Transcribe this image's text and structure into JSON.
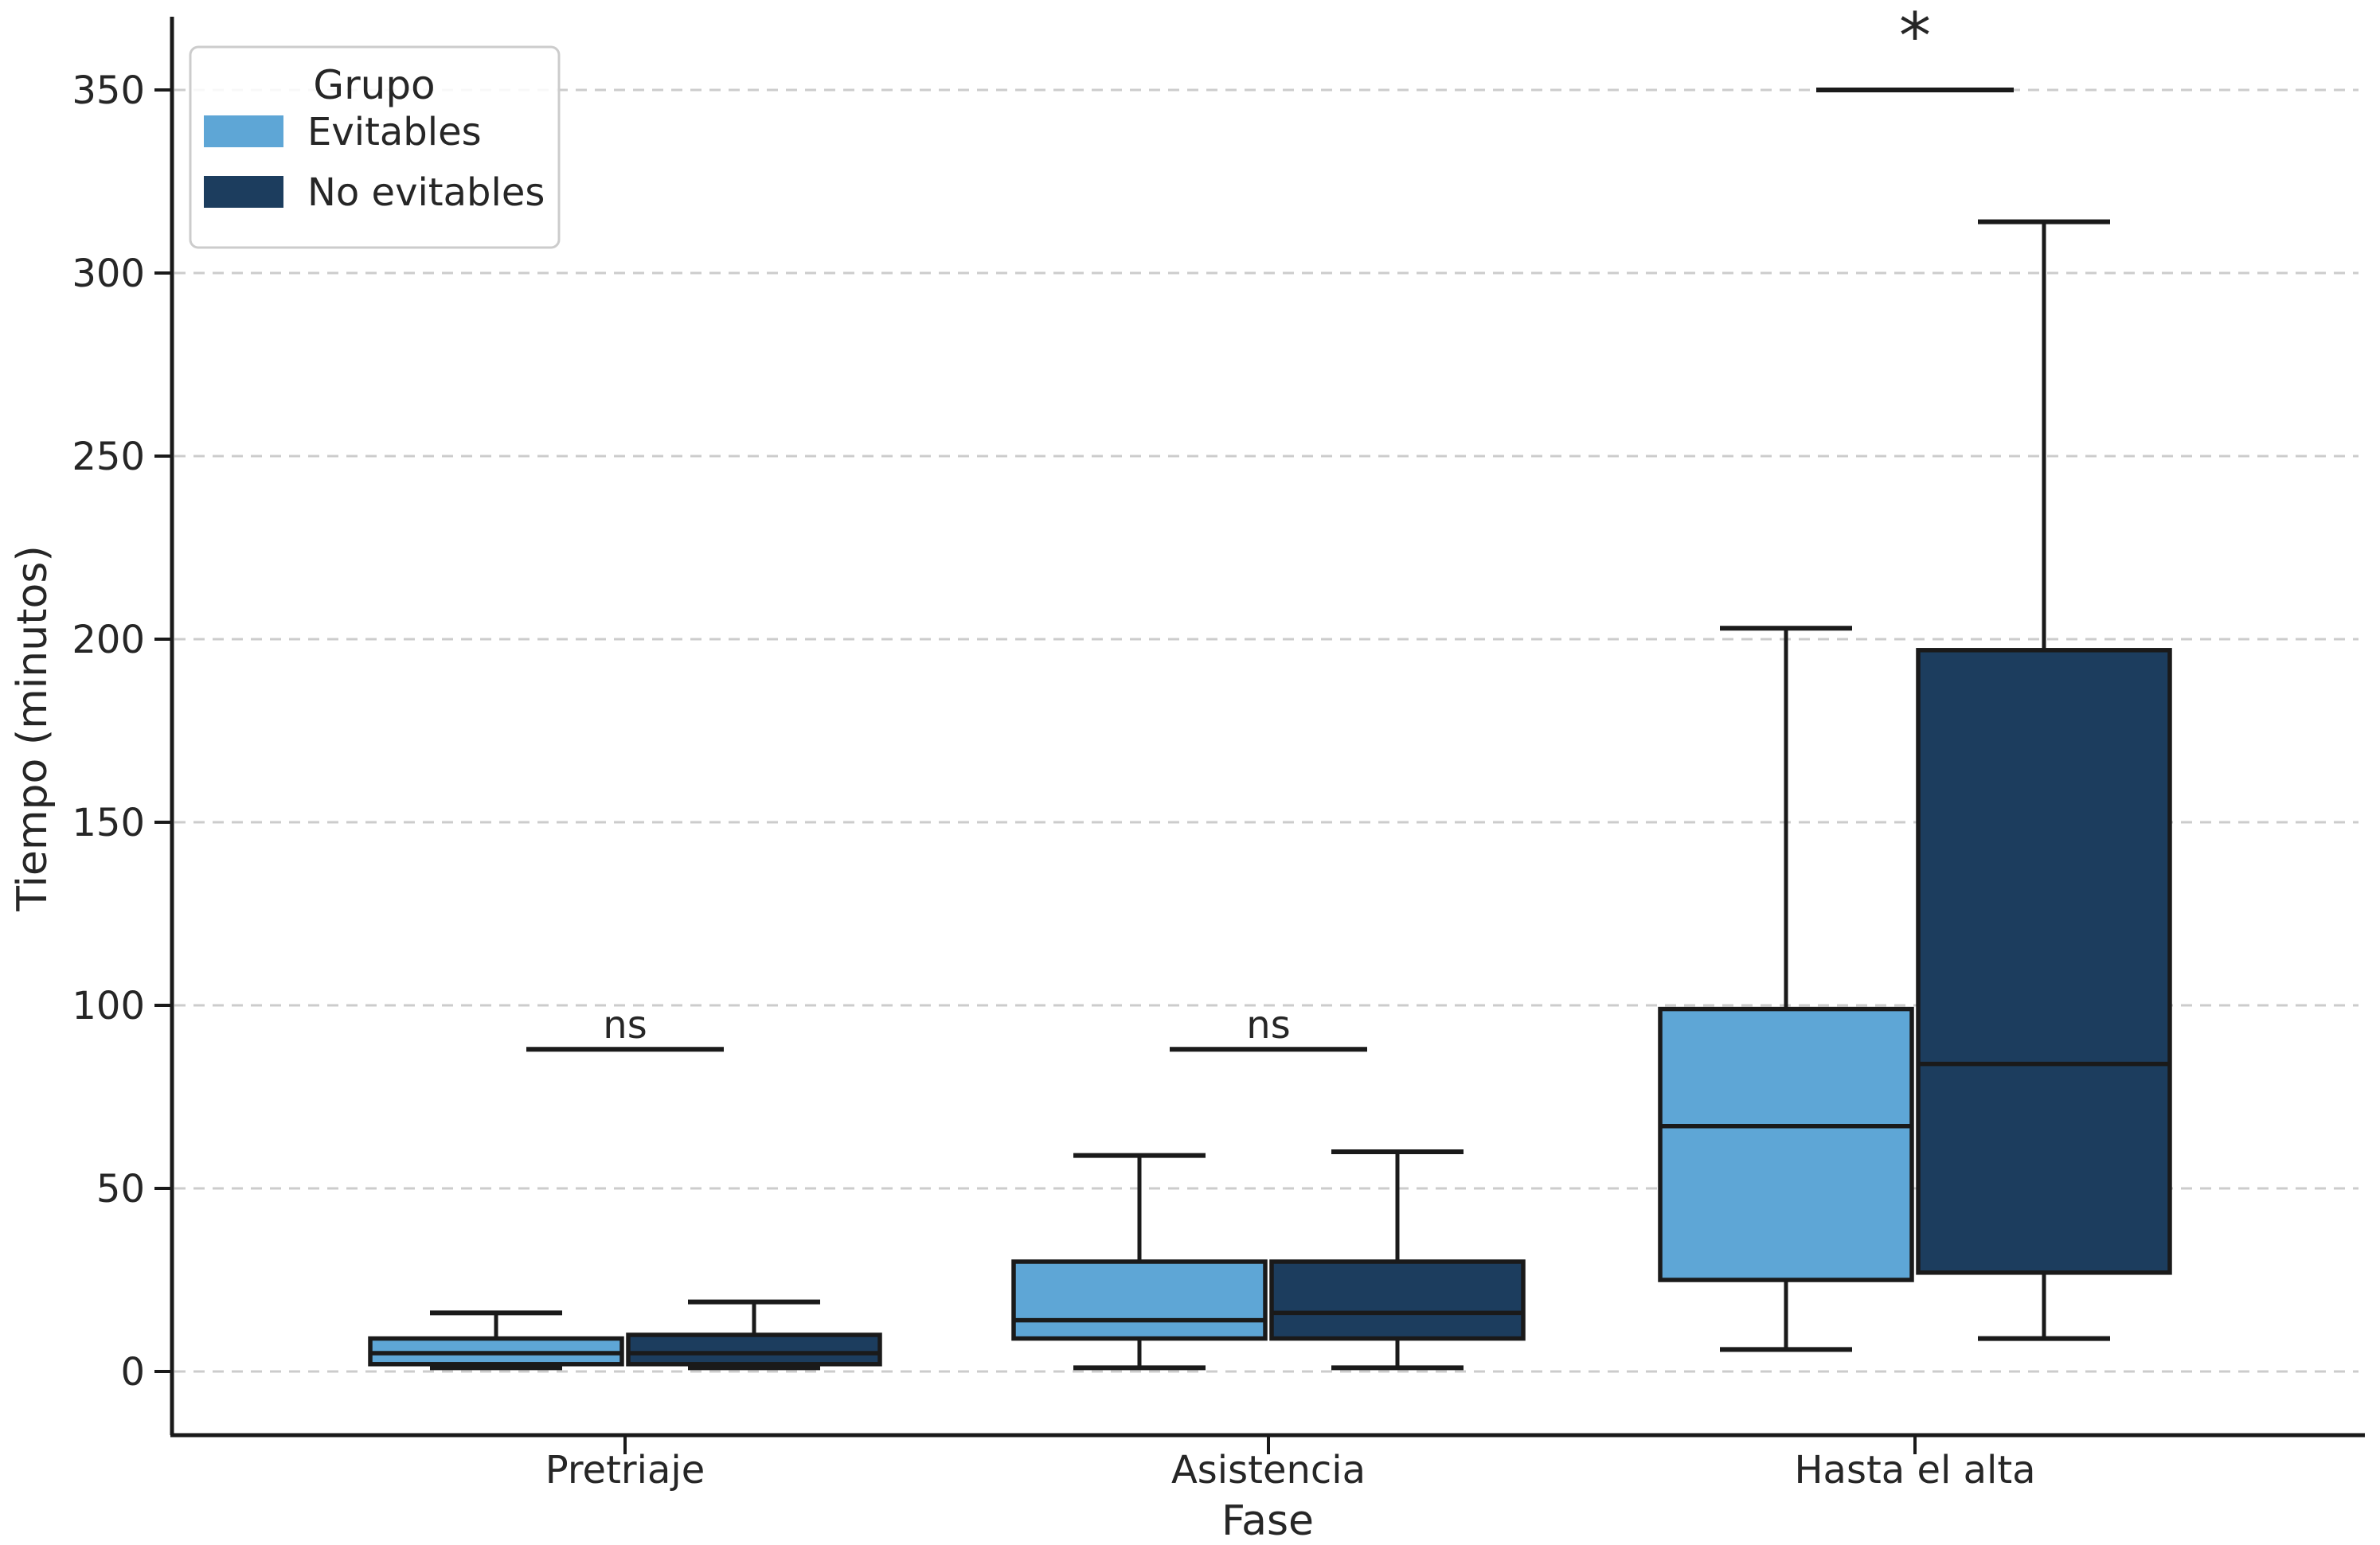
{
  "chart_data": {
    "type": "grouped_boxplot",
    "title": "",
    "xlabel": "Fase",
    "ylabel": "Tiempo (minutos)",
    "categories": [
      "Pretriaje",
      "Asistencia",
      "Hasta el alta"
    ],
    "yticks": [
      0,
      50,
      100,
      150,
      200,
      250,
      300,
      350
    ],
    "ylim": [
      -17,
      370
    ],
    "grid": "horizontal-dashed",
    "legend": {
      "title": "Grupo",
      "position": "upper-left",
      "entries": [
        {
          "label": "Evitables",
          "color": "#5EA6D6"
        },
        {
          "label": "No evitables",
          "color": "#1C3D5E"
        }
      ]
    },
    "series": [
      {
        "name": "Evitables",
        "color": "#5EA6D6",
        "boxes": [
          {
            "category": "Pretriaje",
            "whislo": 1,
            "q1": 2,
            "med": 5,
            "q3": 9,
            "whishi": 16
          },
          {
            "category": "Asistencia",
            "whislo": 1,
            "q1": 9,
            "med": 14,
            "q3": 30,
            "whishi": 59
          },
          {
            "category": "Hasta el alta",
            "whislo": 6,
            "q1": 25,
            "med": 67,
            "q3": 99,
            "whishi": 203
          }
        ]
      },
      {
        "name": "No evitables",
        "color": "#1C3D5E",
        "boxes": [
          {
            "category": "Pretriaje",
            "whislo": 1,
            "q1": 2,
            "med": 5,
            "q3": 10,
            "whishi": 19
          },
          {
            "category": "Asistencia",
            "whislo": 1,
            "q1": 9,
            "med": 16,
            "q3": 30,
            "whishi": 60
          },
          {
            "category": "Hasta el alta",
            "whislo": 9,
            "q1": 27,
            "med": 84,
            "q3": 197,
            "whishi": 314
          }
        ]
      }
    ],
    "annotations": [
      {
        "category": "Pretriaje",
        "label": "ns",
        "y": 88
      },
      {
        "category": "Asistencia",
        "label": "ns",
        "y": 88
      },
      {
        "category": "Hasta el alta",
        "label": "*",
        "y": 350
      }
    ],
    "style_colors": {
      "box_edge": "#1a1a1a",
      "gridline": "#cccccc",
      "spine": "#1a1a1a",
      "text": "#262626",
      "legend_border": "#cccccc",
      "background": "#ffffff"
    }
  }
}
